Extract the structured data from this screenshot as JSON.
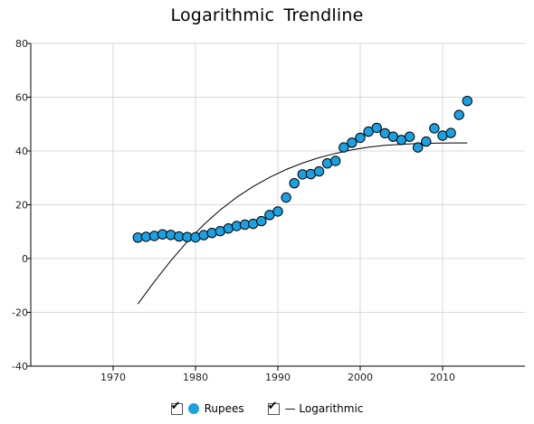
{
  "chart_data": {
    "type": "scatter",
    "title": "Logarithmic  Trendline",
    "xlabel": "",
    "ylabel": "",
    "xlim": [
      1960,
      2020
    ],
    "ylim": [
      -40,
      80
    ],
    "x_ticks": [
      1970,
      1980,
      1990,
      2000,
      2010
    ],
    "y_ticks": [
      -40,
      -20,
      0,
      20,
      40,
      60,
      80
    ],
    "grid": true,
    "legend": "bottom",
    "series": [
      {
        "name": "Rupees",
        "type": "scatter",
        "color": "#1ba1e2",
        "x": [
          1973,
          1974,
          1975,
          1976,
          1977,
          1978,
          1979,
          1980,
          1981,
          1982,
          1983,
          1984,
          1985,
          1986,
          1987,
          1988,
          1989,
          1990,
          1991,
          1992,
          1993,
          1994,
          1995,
          1996,
          1997,
          1998,
          1999,
          2000,
          2001,
          2002,
          2003,
          2004,
          2005,
          2006,
          2007,
          2008,
          2009,
          2010,
          2011,
          2012,
          2013
        ],
        "y": [
          7.8,
          8.1,
          8.4,
          9.0,
          8.8,
          8.2,
          8.0,
          7.9,
          8.7,
          9.5,
          10.2,
          11.2,
          12.1,
          12.6,
          12.9,
          13.9,
          16.2,
          17.5,
          22.7,
          28.0,
          31.3,
          31.4,
          32.4,
          35.4,
          36.3,
          41.3,
          43.1,
          44.9,
          47.2,
          48.6,
          46.6,
          45.3,
          44.1,
          45.3,
          41.3,
          43.5,
          48.4,
          45.7,
          46.7,
          53.4,
          58.6
        ]
      },
      {
        "name": "Logarithmic",
        "type": "line",
        "color": "#000000",
        "x": [
          1973,
          1975,
          1977,
          1979,
          1981,
          1983,
          1985,
          1987,
          1989,
          1991,
          1993,
          1995,
          1997,
          1999,
          2001,
          2003,
          2005,
          2007,
          2009,
          2011,
          2013
        ],
        "y": [
          -16.9,
          -8.6,
          -0.8,
          6.3,
          12.6,
          18.1,
          22.8,
          26.8,
          30.2,
          33.1,
          35.5,
          37.5,
          39.1,
          40.4,
          41.4,
          42.1,
          42.5,
          42.8,
          42.9,
          43.0,
          43.0
        ]
      }
    ]
  },
  "legend": {
    "items": [
      {
        "label": "Rupees",
        "checked_glyph": "✔"
      },
      {
        "label": "— Logarithmic",
        "checked_glyph": "✔"
      }
    ]
  }
}
